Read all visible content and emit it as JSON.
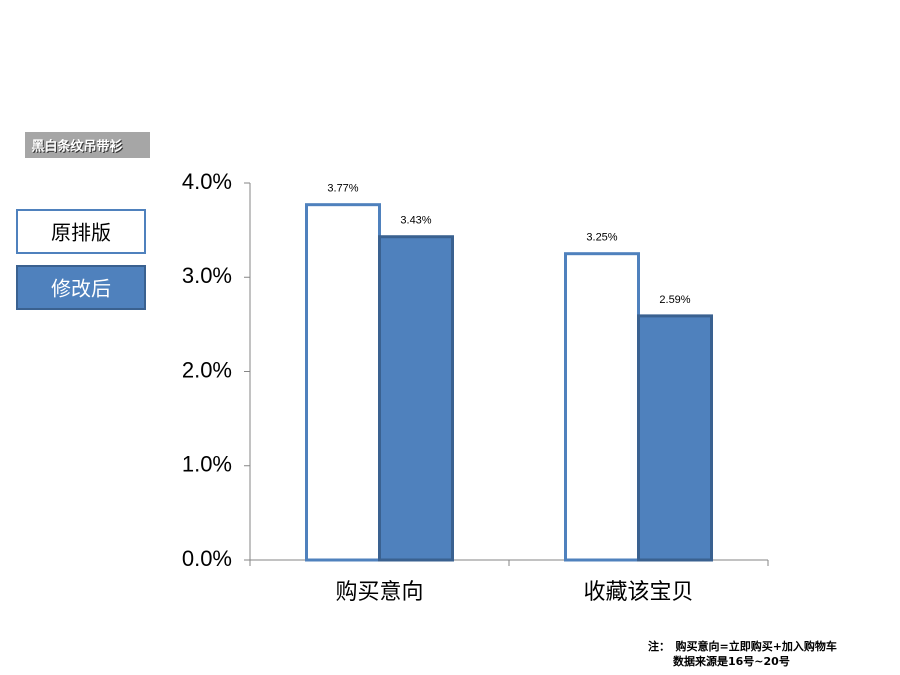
{
  "chart_data": {
    "type": "bar",
    "tag": "黑白条纹吊带衫",
    "categories": [
      "购买意向",
      "收藏该宝贝"
    ],
    "series": [
      {
        "name": "原排版",
        "color": "#ffffff",
        "values": [
          3.77,
          3.25
        ],
        "value_labels": [
          "3.77%",
          "3.25%"
        ]
      },
      {
        "name": "修改后",
        "color": "#4f81bd",
        "values": [
          3.43,
          2.59
        ],
        "value_labels": [
          "3.43%",
          "2.59%"
        ]
      }
    ],
    "ylim": [
      0,
      4
    ],
    "yticks": [
      {
        "value": 0,
        "label": "0.0%"
      },
      {
        "value": 1,
        "label": "1.0%"
      },
      {
        "value": 2,
        "label": "2.0%"
      },
      {
        "value": 3,
        "label": "3.0%"
      },
      {
        "value": 4,
        "label": "4.0%"
      }
    ],
    "notes": [
      "注：　购买意向=立即购买+加入购物车",
      "数据来源是16号~20号"
    ]
  }
}
